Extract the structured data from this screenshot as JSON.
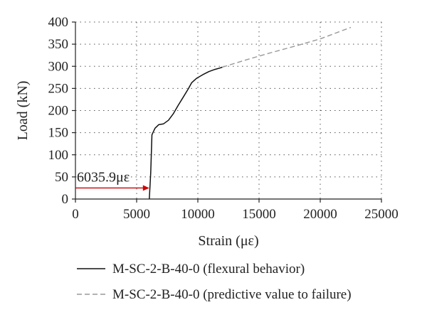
{
  "chart_data": {
    "type": "line",
    "xlabel": "Strain (με)",
    "ylabel": "Load (kN)",
    "xlim": [
      0,
      25000
    ],
    "ylim": [
      0,
      400
    ],
    "xticks": [
      0,
      5000,
      10000,
      15000,
      20000,
      25000
    ],
    "yticks": [
      0,
      50,
      100,
      150,
      200,
      250,
      300,
      350,
      400
    ],
    "grid": "dotted",
    "legend_position": "bottom",
    "series": [
      {
        "name": "M-SC-2-B-40-0 (flexural behavior)",
        "style": "solid",
        "color": "#111111",
        "points": [
          [
            6036,
            0
          ],
          [
            6150,
            60
          ],
          [
            6250,
            145
          ],
          [
            6500,
            160
          ],
          [
            6800,
            168
          ],
          [
            7200,
            170
          ],
          [
            7600,
            178
          ],
          [
            8000,
            193
          ],
          [
            8400,
            212
          ],
          [
            8800,
            230
          ],
          [
            9200,
            248
          ],
          [
            9500,
            263
          ],
          [
            9900,
            273
          ],
          [
            10400,
            281
          ],
          [
            10900,
            288
          ],
          [
            11400,
            293
          ],
          [
            11800,
            296
          ],
          [
            12000,
            298
          ]
        ]
      },
      {
        "name": "M-SC-2-B-40-0 (predictive value to failure)",
        "style": "dashed",
        "color": "#999999",
        "points": [
          [
            12000,
            298
          ],
          [
            14000,
            315
          ],
          [
            16000,
            331
          ],
          [
            18000,
            346
          ],
          [
            20000,
            362
          ],
          [
            22500,
            388
          ]
        ]
      }
    ],
    "annotation": {
      "text": "6035.9με",
      "arrow_from": [
        0,
        25
      ],
      "arrow_to": [
        6036,
        25
      ],
      "color": "#cc0000"
    }
  }
}
